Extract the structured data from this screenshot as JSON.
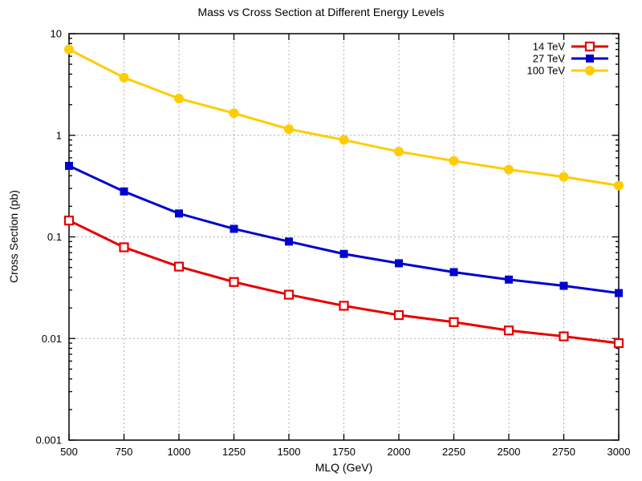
{
  "chart_data": {
    "type": "line",
    "title": "Mass vs Cross Section at Different Energy Levels",
    "xlabel": "MLQ (GeV)",
    "ylabel": "Cross Section (pb)",
    "x": [
      500,
      750,
      1000,
      1250,
      1500,
      1750,
      2000,
      2250,
      2500,
      2750,
      3000
    ],
    "series": [
      {
        "name": "14 TeV",
        "color": "#e60000",
        "marker": "open-square",
        "values": [
          0.145,
          0.079,
          0.051,
          0.036,
          0.027,
          0.021,
          0.017,
          0.0145,
          0.012,
          0.0105,
          0.009
        ]
      },
      {
        "name": "27 TeV",
        "color": "#0000d0",
        "marker": "filled-square",
        "values": [
          0.5,
          0.28,
          0.17,
          0.12,
          0.09,
          0.068,
          0.055,
          0.045,
          0.038,
          0.033,
          0.028
        ]
      },
      {
        "name": "100 TeV",
        "color": "#ffcc00",
        "marker": "filled-circle",
        "values": [
          7.0,
          3.7,
          2.3,
          1.65,
          1.15,
          0.9,
          0.69,
          0.56,
          0.46,
          0.39,
          0.32
        ]
      }
    ],
    "x_axis": {
      "min": 500,
      "max": 3000,
      "ticks": [
        500,
        750,
        1000,
        1250,
        1500,
        1750,
        2000,
        2250,
        2500,
        2750,
        3000
      ]
    },
    "y_axis": {
      "scale": "log",
      "min": 0.001,
      "max": 10,
      "ticks": [
        10,
        1,
        0.1,
        0.01,
        0.001
      ],
      "tick_labels": [
        "10",
        "1",
        "0.1",
        "0.01",
        "0.001"
      ]
    },
    "grid": true,
    "legend_position": "top-right",
    "style": {
      "background": "#ffffff",
      "axis_color": "#000000",
      "grid_color": "#b0b0b0",
      "text_color": "#000000"
    }
  }
}
